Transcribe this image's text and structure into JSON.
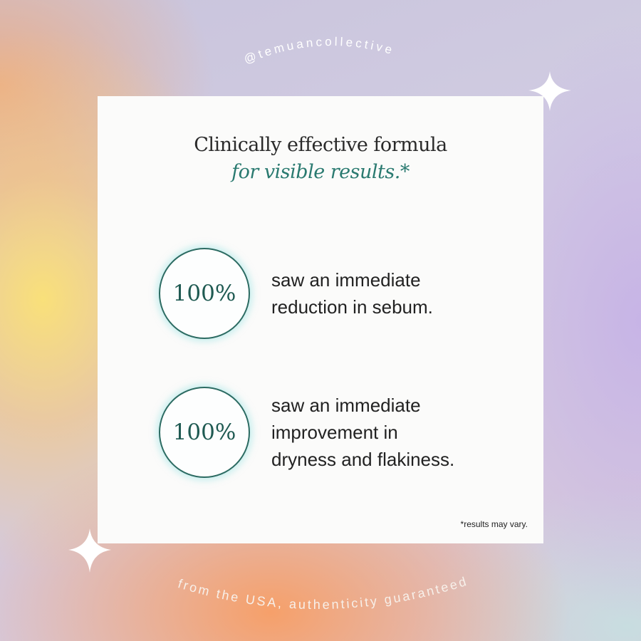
{
  "handle": "@temuancollective",
  "footer": "from the USA, authenticity guaranteed",
  "card": {
    "title_line1": "Clinically effective formula",
    "title_line2": "for visible results.*",
    "stats": [
      {
        "value": "100%",
        "text": [
          "saw an immediate",
          "reduction in sebum."
        ]
      },
      {
        "value": "100%",
        "text": [
          "saw an immediate",
          "improvement in",
          "dryness and flakiness."
        ]
      }
    ],
    "disclaimer": "*results may vary."
  },
  "colors": {
    "accent": "#2a7a70",
    "circle_border": "#2c6b62"
  }
}
